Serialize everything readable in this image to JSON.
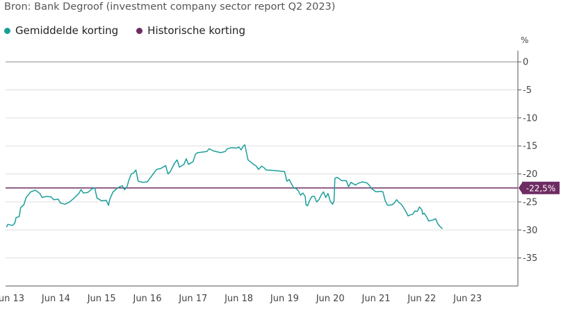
{
  "source": "Bron: Bank Degroof (investment company sector report Q2 2023)",
  "legend": [
    {
      "label": "Gemiddelde korting",
      "color": "#1a9e9a"
    },
    {
      "label": "Historische korting",
      "color": "#6e2c63"
    }
  ],
  "chart_data": {
    "type": "line",
    "y_unit": "%",
    "ylim": [
      -40,
      2
    ],
    "y_ticks": [
      0,
      -5,
      -10,
      -15,
      -20,
      -25,
      -30,
      -35
    ],
    "y_tick_labels": [
      "0",
      "-5",
      "-10",
      "-15",
      "-20",
      "-25",
      "-30",
      "-35"
    ],
    "x_range": [
      2013.4,
      2024.6
    ],
    "x_ticks": [
      2013.5,
      2014.5,
      2015.5,
      2016.5,
      2017.5,
      2018.5,
      2019.5,
      2020.5,
      2021.5,
      2022.5,
      2023.5
    ],
    "x_tick_labels": [
      "Jun 13",
      "Jun 14",
      "Jun 15",
      "Jun 16",
      "Jun 17",
      "Jun 18",
      "Jun 19",
      "Jun 20",
      "Jun 21",
      "Jun 22",
      "Jun 23"
    ],
    "grid": true,
    "legend_position": "top-left",
    "series": [
      {
        "name": "Gemiddelde korting",
        "color": "#1a9e9a",
        "points": [
          [
            2013.42,
            -29.5
          ],
          [
            2013.45,
            -29.0
          ],
          [
            2013.55,
            -29.2
          ],
          [
            2013.6,
            -28.8
          ],
          [
            2013.63,
            -27.8
          ],
          [
            2013.7,
            -27.6
          ],
          [
            2013.73,
            -26.0
          ],
          [
            2013.8,
            -25.5
          ],
          [
            2013.85,
            -24.2
          ],
          [
            2013.95,
            -23.2
          ],
          [
            2014.05,
            -22.9
          ],
          [
            2014.15,
            -23.5
          ],
          [
            2014.2,
            -24.2
          ],
          [
            2014.3,
            -24.0
          ],
          [
            2014.4,
            -24.1
          ],
          [
            2014.45,
            -24.6
          ],
          [
            2014.55,
            -24.5
          ],
          [
            2014.6,
            -25.2
          ],
          [
            2014.7,
            -25.4
          ],
          [
            2014.8,
            -25.0
          ],
          [
            2014.9,
            -24.3
          ],
          [
            2015.0,
            -23.5
          ],
          [
            2015.05,
            -22.8
          ],
          [
            2015.1,
            -23.4
          ],
          [
            2015.2,
            -23.3
          ],
          [
            2015.3,
            -22.6
          ],
          [
            2015.35,
            -22.5
          ],
          [
            2015.4,
            -24.3
          ],
          [
            2015.5,
            -24.8
          ],
          [
            2015.6,
            -24.7
          ],
          [
            2015.65,
            -25.6
          ],
          [
            2015.68,
            -24.5
          ],
          [
            2015.75,
            -23.2
          ],
          [
            2015.85,
            -22.5
          ],
          [
            2015.9,
            -22.3
          ],
          [
            2015.95,
            -22.1
          ],
          [
            2016.0,
            -22.8
          ],
          [
            2016.05,
            -22.4
          ],
          [
            2016.1,
            -21.0
          ],
          [
            2016.15,
            -20.0
          ],
          [
            2016.2,
            -19.8
          ],
          [
            2016.25,
            -19.3
          ],
          [
            2016.3,
            -21.3
          ],
          [
            2016.4,
            -21.5
          ],
          [
            2016.5,
            -21.4
          ],
          [
            2016.6,
            -20.3
          ],
          [
            2016.7,
            -19.2
          ],
          [
            2016.8,
            -19.0
          ],
          [
            2016.9,
            -18.5
          ],
          [
            2016.95,
            -20.0
          ],
          [
            2017.0,
            -19.6
          ],
          [
            2017.05,
            -18.8
          ],
          [
            2017.1,
            -18.0
          ],
          [
            2017.15,
            -17.5
          ],
          [
            2017.2,
            -18.8
          ],
          [
            2017.3,
            -18.3
          ],
          [
            2017.35,
            -17.3
          ],
          [
            2017.4,
            -18.3
          ],
          [
            2017.5,
            -17.8
          ],
          [
            2017.55,
            -16.5
          ],
          [
            2017.6,
            -16.2
          ],
          [
            2017.7,
            -16.1
          ],
          [
            2017.8,
            -16.0
          ],
          [
            2017.85,
            -15.5
          ],
          [
            2017.95,
            -15.9
          ],
          [
            2018.1,
            -16.2
          ],
          [
            2018.2,
            -16.0
          ],
          [
            2018.25,
            -15.5
          ],
          [
            2018.35,
            -15.3
          ],
          [
            2018.45,
            -15.4
          ],
          [
            2018.5,
            -15.2
          ],
          [
            2018.55,
            -15.7
          ],
          [
            2018.6,
            -15.0
          ],
          [
            2018.63,
            -14.8
          ],
          [
            2018.7,
            -17.5
          ],
          [
            2018.75,
            -17.8
          ],
          [
            2018.82,
            -18.3
          ],
          [
            2018.88,
            -18.6
          ],
          [
            2018.93,
            -19.2
          ],
          [
            2019.0,
            -18.6
          ],
          [
            2019.05,
            -18.9
          ],
          [
            2019.1,
            -19.3
          ],
          [
            2019.3,
            -19.4
          ],
          [
            2019.4,
            -19.5
          ],
          [
            2019.5,
            -19.6
          ],
          [
            2019.55,
            -21.3
          ],
          [
            2019.6,
            -21.0
          ],
          [
            2019.7,
            -22.5
          ],
          [
            2019.75,
            -22.6
          ],
          [
            2019.8,
            -23.0
          ],
          [
            2019.85,
            -23.8
          ],
          [
            2019.9,
            -23.4
          ],
          [
            2019.95,
            -24.0
          ],
          [
            2019.97,
            -25.5
          ],
          [
            2020.0,
            -25.7
          ],
          [
            2020.05,
            -24.7
          ],
          [
            2020.1,
            -24.0
          ],
          [
            2020.15,
            -24.0
          ],
          [
            2020.2,
            -25.0
          ],
          [
            2020.25,
            -24.6
          ],
          [
            2020.3,
            -23.8
          ],
          [
            2020.35,
            -23.2
          ],
          [
            2020.4,
            -24.2
          ],
          [
            2020.45,
            -23.5
          ],
          [
            2020.5,
            -24.9
          ],
          [
            2020.55,
            -25.4
          ],
          [
            2020.58,
            -24.8
          ],
          [
            2020.6,
            -20.8
          ],
          [
            2020.65,
            -20.6
          ],
          [
            2020.75,
            -21.2
          ],
          [
            2020.85,
            -21.2
          ],
          [
            2020.9,
            -22.3
          ],
          [
            2020.95,
            -21.5
          ],
          [
            2021.05,
            -22.0
          ],
          [
            2021.1,
            -21.7
          ],
          [
            2021.2,
            -21.4
          ],
          [
            2021.3,
            -21.6
          ],
          [
            2021.35,
            -22.0
          ],
          [
            2021.4,
            -22.6
          ],
          [
            2021.5,
            -23.2
          ],
          [
            2021.6,
            -23.1
          ],
          [
            2021.65,
            -23.2
          ],
          [
            2021.7,
            -24.8
          ],
          [
            2021.75,
            -25.6
          ],
          [
            2021.85,
            -25.5
          ],
          [
            2021.9,
            -25.2
          ],
          [
            2021.95,
            -24.6
          ],
          [
            2022.0,
            -25.1
          ],
          [
            2022.05,
            -25.4
          ],
          [
            2022.1,
            -26.0
          ],
          [
            2022.15,
            -26.7
          ],
          [
            2022.2,
            -27.5
          ],
          [
            2022.25,
            -27.3
          ],
          [
            2022.3,
            -27.2
          ],
          [
            2022.35,
            -26.6
          ],
          [
            2022.4,
            -26.7
          ],
          [
            2022.45,
            -25.9
          ],
          [
            2022.5,
            -26.4
          ],
          [
            2022.52,
            -27.2
          ],
          [
            2022.55,
            -27.0
          ],
          [
            2022.6,
            -27.6
          ],
          [
            2022.65,
            -28.4
          ],
          [
            2022.75,
            -28.2
          ],
          [
            2022.8,
            -28.0
          ],
          [
            2022.85,
            -28.9
          ],
          [
            2022.9,
            -29.4
          ],
          [
            2022.95,
            -29.8
          ]
        ]
      },
      {
        "name": "Historische korting",
        "color": "#6e2c63",
        "value": -22.5
      }
    ],
    "annotation": {
      "label": "-22,5%",
      "value": -22.5,
      "color": "#6e2c63"
    }
  }
}
